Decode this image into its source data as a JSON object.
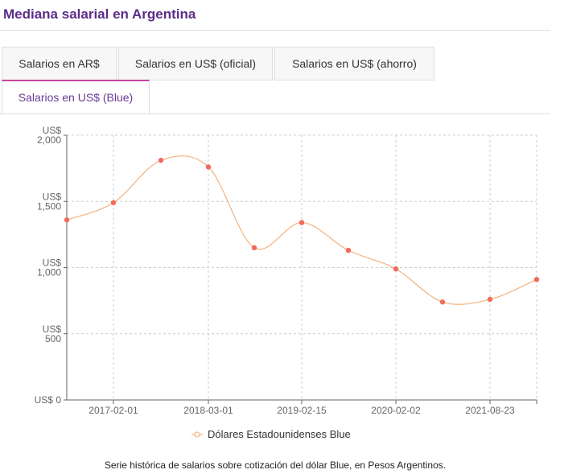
{
  "header": {
    "title": "Mediana salarial en Argentina"
  },
  "tabs": [
    {
      "label": "Salarios en AR$",
      "active": false
    },
    {
      "label": "Salarios en US$ (oficial)",
      "active": false
    },
    {
      "label": "Salarios en US$ (ahorro)",
      "active": false
    },
    {
      "label": "Salarios en US$ (Blue)",
      "active": true
    }
  ],
  "colors": {
    "line": "#f3b27c",
    "point": "#f26a5b",
    "grid": "#cccccc",
    "tab_accent": "#c2469a",
    "title": "#5b2d86"
  },
  "chart_data": {
    "type": "line",
    "ylim": [
      0,
      2000
    ],
    "y_ticks": [
      {
        "value": 0,
        "label": "US$ 0"
      },
      {
        "value": 500,
        "label": "US$ 500"
      },
      {
        "value": 1000,
        "label": "US$ 1,000"
      },
      {
        "value": 1500,
        "label": "US$ 1,500"
      },
      {
        "value": 2000,
        "label": "US$ 2,000"
      }
    ],
    "x_ticks": [
      "2017-02-01",
      "2018-03-01",
      "2019-02-15",
      "2020-02-02",
      "2021-08-23"
    ],
    "series": [
      {
        "name": "Dólares Estadounidenses Blue",
        "x": [
          "2016-08",
          "2017-02-01",
          "2017-08",
          "2018-03-01",
          "2018-08",
          "2019-02-15",
          "2019-08",
          "2020-02-02",
          "2020-08",
          "2021-02",
          "2021-08-23"
        ],
        "values": [
          1360,
          1490,
          1810,
          1760,
          1150,
          1340,
          1130,
          990,
          740,
          760,
          910
        ]
      }
    ],
    "legend": "bottom-center",
    "grid": true,
    "caption": "Serie histórica de salarios sobre cotización del dólar Blue, en Pesos Argentinos."
  }
}
